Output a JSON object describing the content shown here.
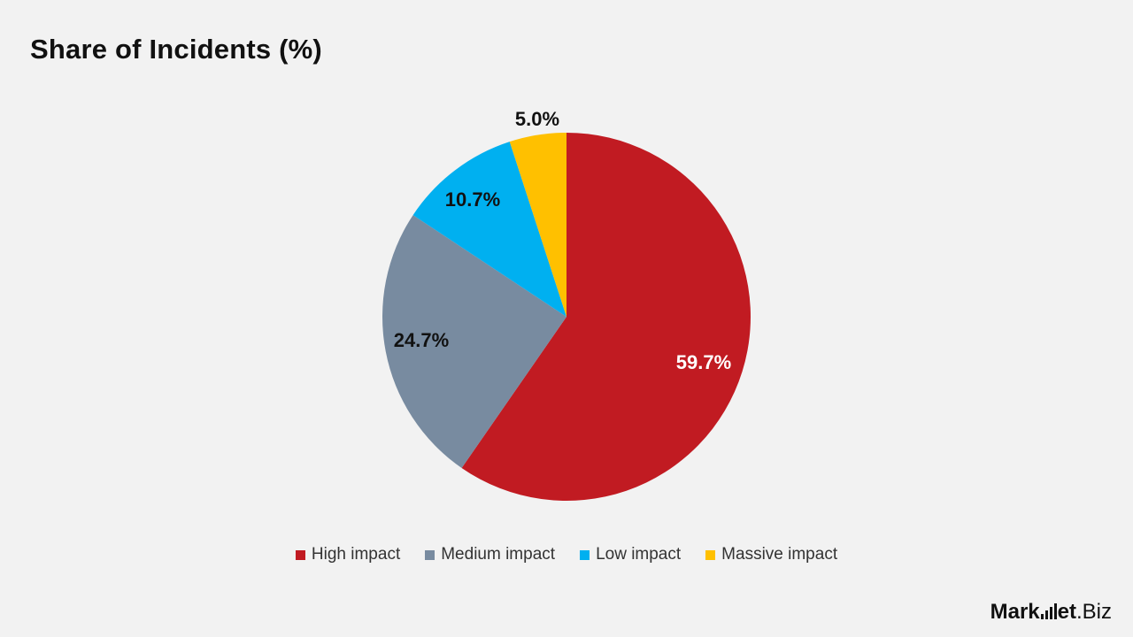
{
  "title": "Share of Incidents (%)",
  "chart_data": {
    "type": "pie",
    "title": "Share of Incidents (%)",
    "slices": [
      {
        "label": "High impact",
        "value": 59.7,
        "display": "59.7%",
        "color": "#c11b22",
        "label_color": "#ffffff"
      },
      {
        "label": "Medium impact",
        "value": 24.7,
        "display": "24.7%",
        "color": "#788ba0",
        "label_color": "#111111"
      },
      {
        "label": "Low impact",
        "value": 10.7,
        "display": "10.7%",
        "color": "#00b0f0",
        "label_color": "#111111"
      },
      {
        "label": "Massive impact",
        "value": 5.0,
        "display": "5.0%",
        "color": "#ffc000",
        "label_color": "#111111"
      }
    ],
    "start_angle": "12 o'clock",
    "direction": "clockwise",
    "legend_position": "bottom"
  },
  "brand": {
    "name_left": "Mark",
    "name_right": "et",
    "suffix": ".Biz",
    "color": "#111111"
  }
}
